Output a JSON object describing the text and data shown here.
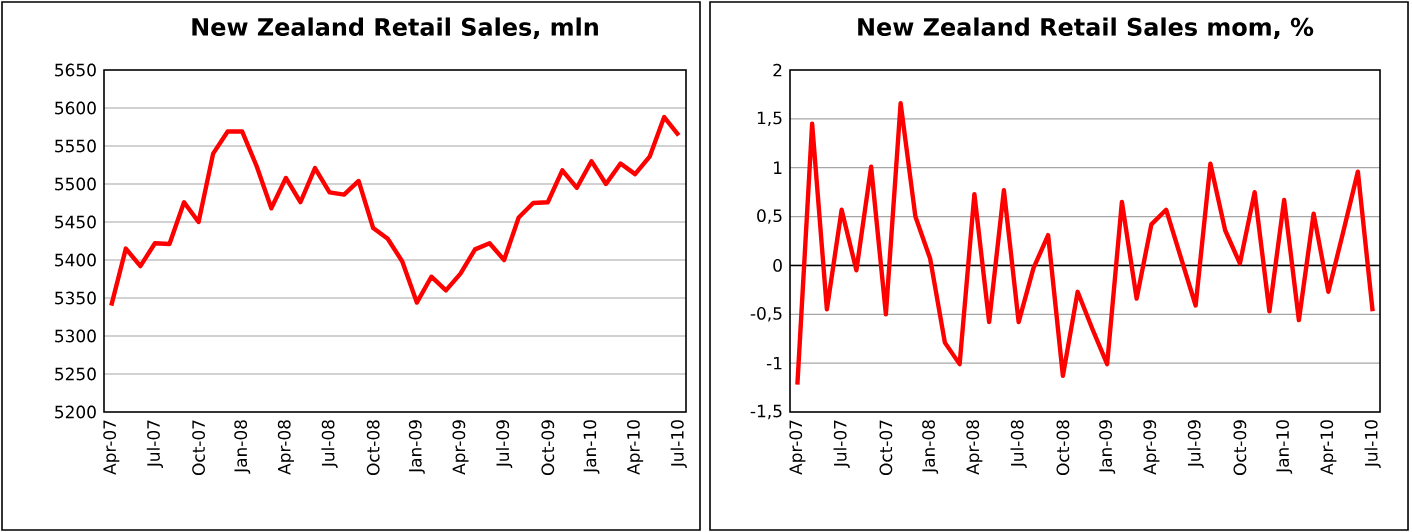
{
  "chart_data": [
    {
      "type": "line",
      "title": "New Zealand Retail Sales, mln",
      "categories": [
        "Apr-07",
        null,
        null,
        "Jul-07",
        null,
        null,
        "Oct-07",
        null,
        null,
        "Jan-08",
        null,
        null,
        "Apr-08",
        null,
        null,
        "Jul-08",
        null,
        null,
        "Oct-08",
        null,
        null,
        "Jan-09",
        null,
        null,
        "Apr-09",
        null,
        null,
        "Jul-09",
        null,
        null,
        "Oct-09",
        null,
        null,
        "Jan-10",
        null,
        null,
        "Apr-10",
        null,
        null,
        "Jul-10"
      ],
      "series": [
        {
          "color": "#ff0000",
          "values": [
            5340,
            5415,
            5392,
            5422,
            5421,
            5476,
            5450,
            5540,
            5569,
            5569,
            5523,
            5468,
            5508,
            5476,
            5521,
            5489,
            5486,
            5504,
            5442,
            5428,
            5398,
            5344,
            5378,
            5360,
            5382,
            5414,
            5422,
            5400,
            5456,
            5475,
            5476,
            5518,
            5495,
            5530,
            5500,
            5527,
            5513,
            5536,
            5588,
            5564
          ]
        }
      ],
      "ylim": [
        5200,
        5650
      ],
      "yticks": [
        5200,
        5250,
        5300,
        5350,
        5400,
        5450,
        5500,
        5550,
        5600,
        5650
      ],
      "grid": "y"
    },
    {
      "type": "line",
      "title": "New Zealand Retail Sales mom, %",
      "categories": [
        "Apr-07",
        null,
        null,
        "Jul-07",
        null,
        null,
        "Oct-07",
        null,
        null,
        "Jan-08",
        null,
        null,
        "Apr-08",
        null,
        null,
        "Jul-08",
        null,
        null,
        "Oct-08",
        null,
        null,
        "Jan-09",
        null,
        null,
        "Apr-09",
        null,
        null,
        "Jul-09",
        null,
        null,
        "Oct-09",
        null,
        null,
        "Jan-10",
        null,
        null,
        "Apr-10",
        null,
        null,
        "Jul-10"
      ],
      "series": [
        {
          "color": "#ff0000",
          "values": [
            -1.22,
            1.45,
            -0.45,
            0.57,
            -0.05,
            1.01,
            -0.5,
            1.66,
            0.5,
            0.07,
            -0.79,
            -1.01,
            0.73,
            -0.58,
            0.77,
            -0.58,
            -0.03,
            0.31,
            -1.13,
            -0.27,
            -0.65,
            -1.01,
            0.65,
            -0.34,
            0.42,
            0.57,
            0.08,
            -0.41,
            1.04,
            0.36,
            0.02,
            0.75,
            -0.47,
            0.67,
            -0.56,
            0.53,
            -0.27,
            0.34,
            0.96,
            -0.47
          ]
        }
      ],
      "ylim": [
        -1.5,
        2
      ],
      "yticks": [
        {
          "value": -1.5,
          "label": "-1,5"
        },
        -1,
        {
          "value": -0.5,
          "label": "-0,5"
        },
        0,
        {
          "value": 0.5,
          "label": "0,5"
        },
        1,
        {
          "value": 1.5,
          "label": "1,5"
        },
        2
      ],
      "grid": "y"
    }
  ]
}
